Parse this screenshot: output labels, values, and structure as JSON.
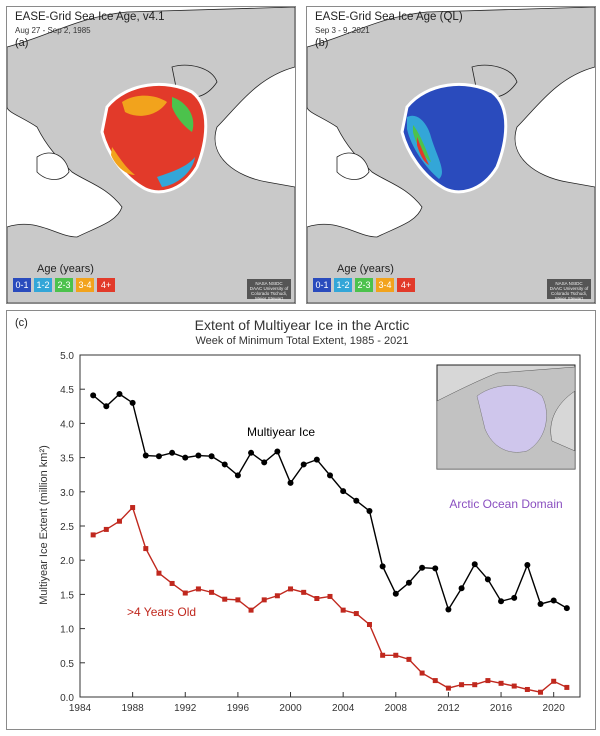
{
  "panel_a": {
    "title": "EASE-Grid Sea Ice Age, v4.1",
    "date": "Aug 27 - Sep 2, 1985",
    "label": "(a)",
    "legend_title": "Age (years)",
    "legend": [
      {
        "label": "0-1",
        "color": "#2a4bbd"
      },
      {
        "label": "1-2",
        "color": "#33a6d8"
      },
      {
        "label": "2-3",
        "color": "#4cc24c"
      },
      {
        "label": "3-4",
        "color": "#f2a31c"
      },
      {
        "label": "4+",
        "color": "#e23a2a"
      }
    ],
    "credit": "NASA NSIDC DAAC University of Colorado Tschudi, Meier Stewart"
  },
  "panel_b": {
    "title": "EASE-Grid Sea Ice Age (QL)",
    "date": "Sep 3 - 9, 2021",
    "label": "(b)",
    "legend_title": "Age (years)",
    "legend": [
      {
        "label": "0-1",
        "color": "#2a4bbd"
      },
      {
        "label": "1-2",
        "color": "#33a6d8"
      },
      {
        "label": "2-3",
        "color": "#4cc24c"
      },
      {
        "label": "3-4",
        "color": "#f2a31c"
      },
      {
        "label": "4+",
        "color": "#e23a2a"
      }
    ],
    "credit": "NASA NSIDC DAAC University of Colorado Tschudi, Meier Stewart"
  },
  "panel_c": {
    "label": "(c)",
    "inset_label": "Arctic Ocean Domain",
    "inset_label_color": "#8a4fc0"
  },
  "chart_data": {
    "type": "line",
    "title": "Extent of Multiyear Ice in the Arctic",
    "subtitle": "Week of Minimum Total Extent, 1985 - 2021",
    "xlabel": "",
    "ylabel": "Multiyear Ice Extent (million km²)",
    "xlim": [
      1984,
      2022
    ],
    "ylim": [
      0,
      5
    ],
    "xticks": [
      1984,
      1988,
      1992,
      1996,
      2000,
      2004,
      2008,
      2012,
      2016,
      2020
    ],
    "yticks": [
      "0.0",
      "0.5",
      "1.0",
      "1.5",
      "2.0",
      "2.5",
      "3.0",
      "3.5",
      "4.0",
      "4.5",
      "5.0"
    ],
    "x": [
      1985,
      1986,
      1987,
      1988,
      1989,
      1990,
      1991,
      1992,
      1993,
      1994,
      1995,
      1996,
      1997,
      1998,
      1999,
      2000,
      2001,
      2002,
      2003,
      2004,
      2005,
      2006,
      2007,
      2008,
      2009,
      2010,
      2011,
      2012,
      2013,
      2014,
      2015,
      2016,
      2017,
      2018,
      2019,
      2020,
      2021
    ],
    "series": [
      {
        "name": "Multiyear Ice",
        "color": "#000000",
        "marker": "circle",
        "values": [
          4.41,
          4.25,
          4.43,
          4.3,
          3.53,
          3.52,
          3.57,
          3.5,
          3.53,
          3.52,
          3.4,
          3.24,
          3.57,
          3.43,
          3.59,
          3.13,
          3.4,
          3.47,
          3.24,
          3.01,
          2.87,
          2.72,
          1.91,
          1.51,
          1.67,
          1.89,
          1.88,
          1.28,
          1.59,
          1.94,
          1.72,
          1.4,
          1.45,
          1.93,
          1.36,
          1.41,
          1.3
        ]
      },
      {
        "name": ">4 Years Old",
        "color": "#c0281e",
        "marker": "square",
        "values": [
          2.37,
          2.45,
          2.57,
          2.77,
          2.17,
          1.81,
          1.66,
          1.52,
          1.58,
          1.53,
          1.43,
          1.42,
          1.27,
          1.42,
          1.48,
          1.58,
          1.53,
          1.44,
          1.47,
          1.27,
          1.22,
          1.06,
          0.61,
          0.61,
          0.55,
          0.35,
          0.24,
          0.13,
          0.18,
          0.18,
          0.24,
          0.2,
          0.16,
          0.11,
          0.07,
          0.23,
          0.14
        ]
      }
    ],
    "grid": false,
    "legend": "inline labels"
  }
}
